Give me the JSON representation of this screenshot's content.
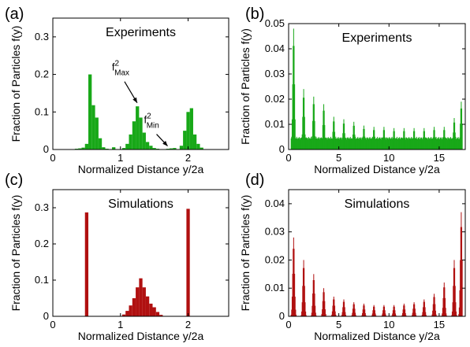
{
  "chart_data": [
    {
      "panel": "(a)",
      "type": "bar",
      "title": "Experiments",
      "xlabel": "Normalized Distance y/2a",
      "ylabel": "Fraction of Particles f(y)",
      "xlim": [
        0,
        2.6
      ],
      "ylim": [
        0,
        0.35
      ],
      "xticks": [
        0,
        1,
        2
      ],
      "yticks": [
        0,
        0.1,
        0.2,
        0.3
      ],
      "ytick_labels": [
        "0",
        "0.1",
        "0.2",
        "0.3"
      ],
      "bar_width": 0.05,
      "color": "#18a818",
      "x": [
        0.35,
        0.4,
        0.45,
        0.5,
        0.55,
        0.6,
        0.65,
        0.7,
        0.75,
        0.8,
        0.85,
        0.9,
        0.95,
        1.0,
        1.05,
        1.1,
        1.15,
        1.2,
        1.25,
        1.3,
        1.35,
        1.4,
        1.45,
        1.5,
        1.55,
        1.6,
        1.65,
        1.7,
        1.75,
        1.8,
        1.85,
        1.9,
        1.95,
        2.0,
        2.05,
        2.1,
        2.15,
        2.2
      ],
      "values": [
        0.002,
        0.003,
        0.005,
        0.015,
        0.2,
        0.118,
        0.085,
        0.03,
        0.006,
        0.002,
        0.0,
        0.006,
        0.0,
        0.0,
        0.004,
        0.015,
        0.04,
        0.075,
        0.115,
        0.085,
        0.045,
        0.02,
        0.01,
        0.004,
        0.002,
        0.0,
        0.0,
        0.002,
        0.003,
        0.004,
        0.0,
        0.01,
        0.05,
        0.1,
        0.11,
        0.04,
        0.015,
        0.005
      ],
      "annotations": [
        {
          "base": "f",
          "sup": "2",
          "sub": "Max",
          "x": 1.27,
          "y": 0.118
        },
        {
          "base": "f",
          "sup": "2",
          "sub": "Min",
          "x": 1.72,
          "y": 0.003
        }
      ]
    },
    {
      "panel": "(b)",
      "type": "bar",
      "title": "Experiments",
      "xlabel": "Normalized Distance y/2a",
      "ylabel": "Fraction of Particles f(y)",
      "xlim": [
        0,
        17.6
      ],
      "ylim": [
        0,
        0.05
      ],
      "xticks": [
        0,
        5,
        10,
        15
      ],
      "yticks": [
        0,
        0.01,
        0.02,
        0.03,
        0.04,
        0.05
      ],
      "ytick_labels": [
        "0",
        "0.01",
        "0.02",
        "0.03",
        "0.04",
        "0.05"
      ],
      "bar_width": 0.05,
      "color": "#18a818",
      "peaks": [
        {
          "x": 0.5,
          "y": 0.048
        },
        {
          "x": 1.5,
          "y": 0.024
        },
        {
          "x": 2.5,
          "y": 0.021
        },
        {
          "x": 3.5,
          "y": 0.018
        },
        {
          "x": 4.5,
          "y": 0.013
        },
        {
          "x": 5.5,
          "y": 0.012
        },
        {
          "x": 6.5,
          "y": 0.011
        },
        {
          "x": 7.5,
          "y": 0.0095
        },
        {
          "x": 8.5,
          "y": 0.009
        },
        {
          "x": 9.5,
          "y": 0.009
        },
        {
          "x": 10.5,
          "y": 0.0085
        },
        {
          "x": 11.5,
          "y": 0.0085
        },
        {
          "x": 12.5,
          "y": 0.0085
        },
        {
          "x": 13.5,
          "y": 0.0085
        },
        {
          "x": 14.5,
          "y": 0.009
        },
        {
          "x": 15.5,
          "y": 0.009
        },
        {
          "x": 16.5,
          "y": 0.0125
        },
        {
          "x": 17.2,
          "y": 0.019
        }
      ],
      "baseline": 0.0045
    },
    {
      "panel": "(c)",
      "type": "bar",
      "title": "Simulations",
      "xlabel": "Normalized Distance y/2a",
      "ylabel": "Fraction of Particles f(y)",
      "xlim": [
        0,
        2.6
      ],
      "ylim": [
        0,
        0.35
      ],
      "xticks": [
        0,
        1,
        2
      ],
      "yticks": [
        0,
        0.1,
        0.2,
        0.3
      ],
      "ytick_labels": [
        "0",
        "0.1",
        "0.2",
        "0.3"
      ],
      "bar_width": 0.05,
      "color": "#b01010",
      "x": [
        0.5,
        1.05,
        1.1,
        1.15,
        1.2,
        1.25,
        1.3,
        1.35,
        1.4,
        1.45,
        1.5,
        1.55,
        1.6,
        2.0
      ],
      "values": [
        0.287,
        0.005,
        0.015,
        0.03,
        0.05,
        0.08,
        0.105,
        0.08,
        0.055,
        0.035,
        0.025,
        0.012,
        0.004,
        0.297
      ]
    },
    {
      "panel": "(d)",
      "type": "bar",
      "title": "Simulations",
      "xlabel": "Normalized Distance y/2a",
      "ylabel": "Fraction of Particles f(y)",
      "xlim": [
        0,
        17.6
      ],
      "ylim": [
        0,
        0.045
      ],
      "xticks": [
        0,
        5,
        10,
        15
      ],
      "yticks": [
        0,
        0.01,
        0.02,
        0.03,
        0.04
      ],
      "ytick_labels": [
        "0",
        "0.01",
        "0.02",
        "0.03",
        "0.04"
      ],
      "bar_width": 0.05,
      "color": "#b01010",
      "peaks": [
        {
          "x": 0.5,
          "y": 0.028
        },
        {
          "x": 1.5,
          "y": 0.02
        },
        {
          "x": 2.5,
          "y": 0.015
        },
        {
          "x": 3.5,
          "y": 0.01
        },
        {
          "x": 4.5,
          "y": 0.007
        },
        {
          "x": 5.5,
          "y": 0.006
        },
        {
          "x": 6.5,
          "y": 0.005
        },
        {
          "x": 7.5,
          "y": 0.0045
        },
        {
          "x": 8.5,
          "y": 0.004
        },
        {
          "x": 9.5,
          "y": 0.004
        },
        {
          "x": 10.5,
          "y": 0.004
        },
        {
          "x": 11.5,
          "y": 0.0045
        },
        {
          "x": 12.5,
          "y": 0.005
        },
        {
          "x": 13.5,
          "y": 0.006
        },
        {
          "x": 14.5,
          "y": 0.008
        },
        {
          "x": 15.5,
          "y": 0.012
        },
        {
          "x": 16.5,
          "y": 0.02
        },
        {
          "x": 17.2,
          "y": 0.037
        }
      ],
      "baseline": 0.0
    }
  ]
}
